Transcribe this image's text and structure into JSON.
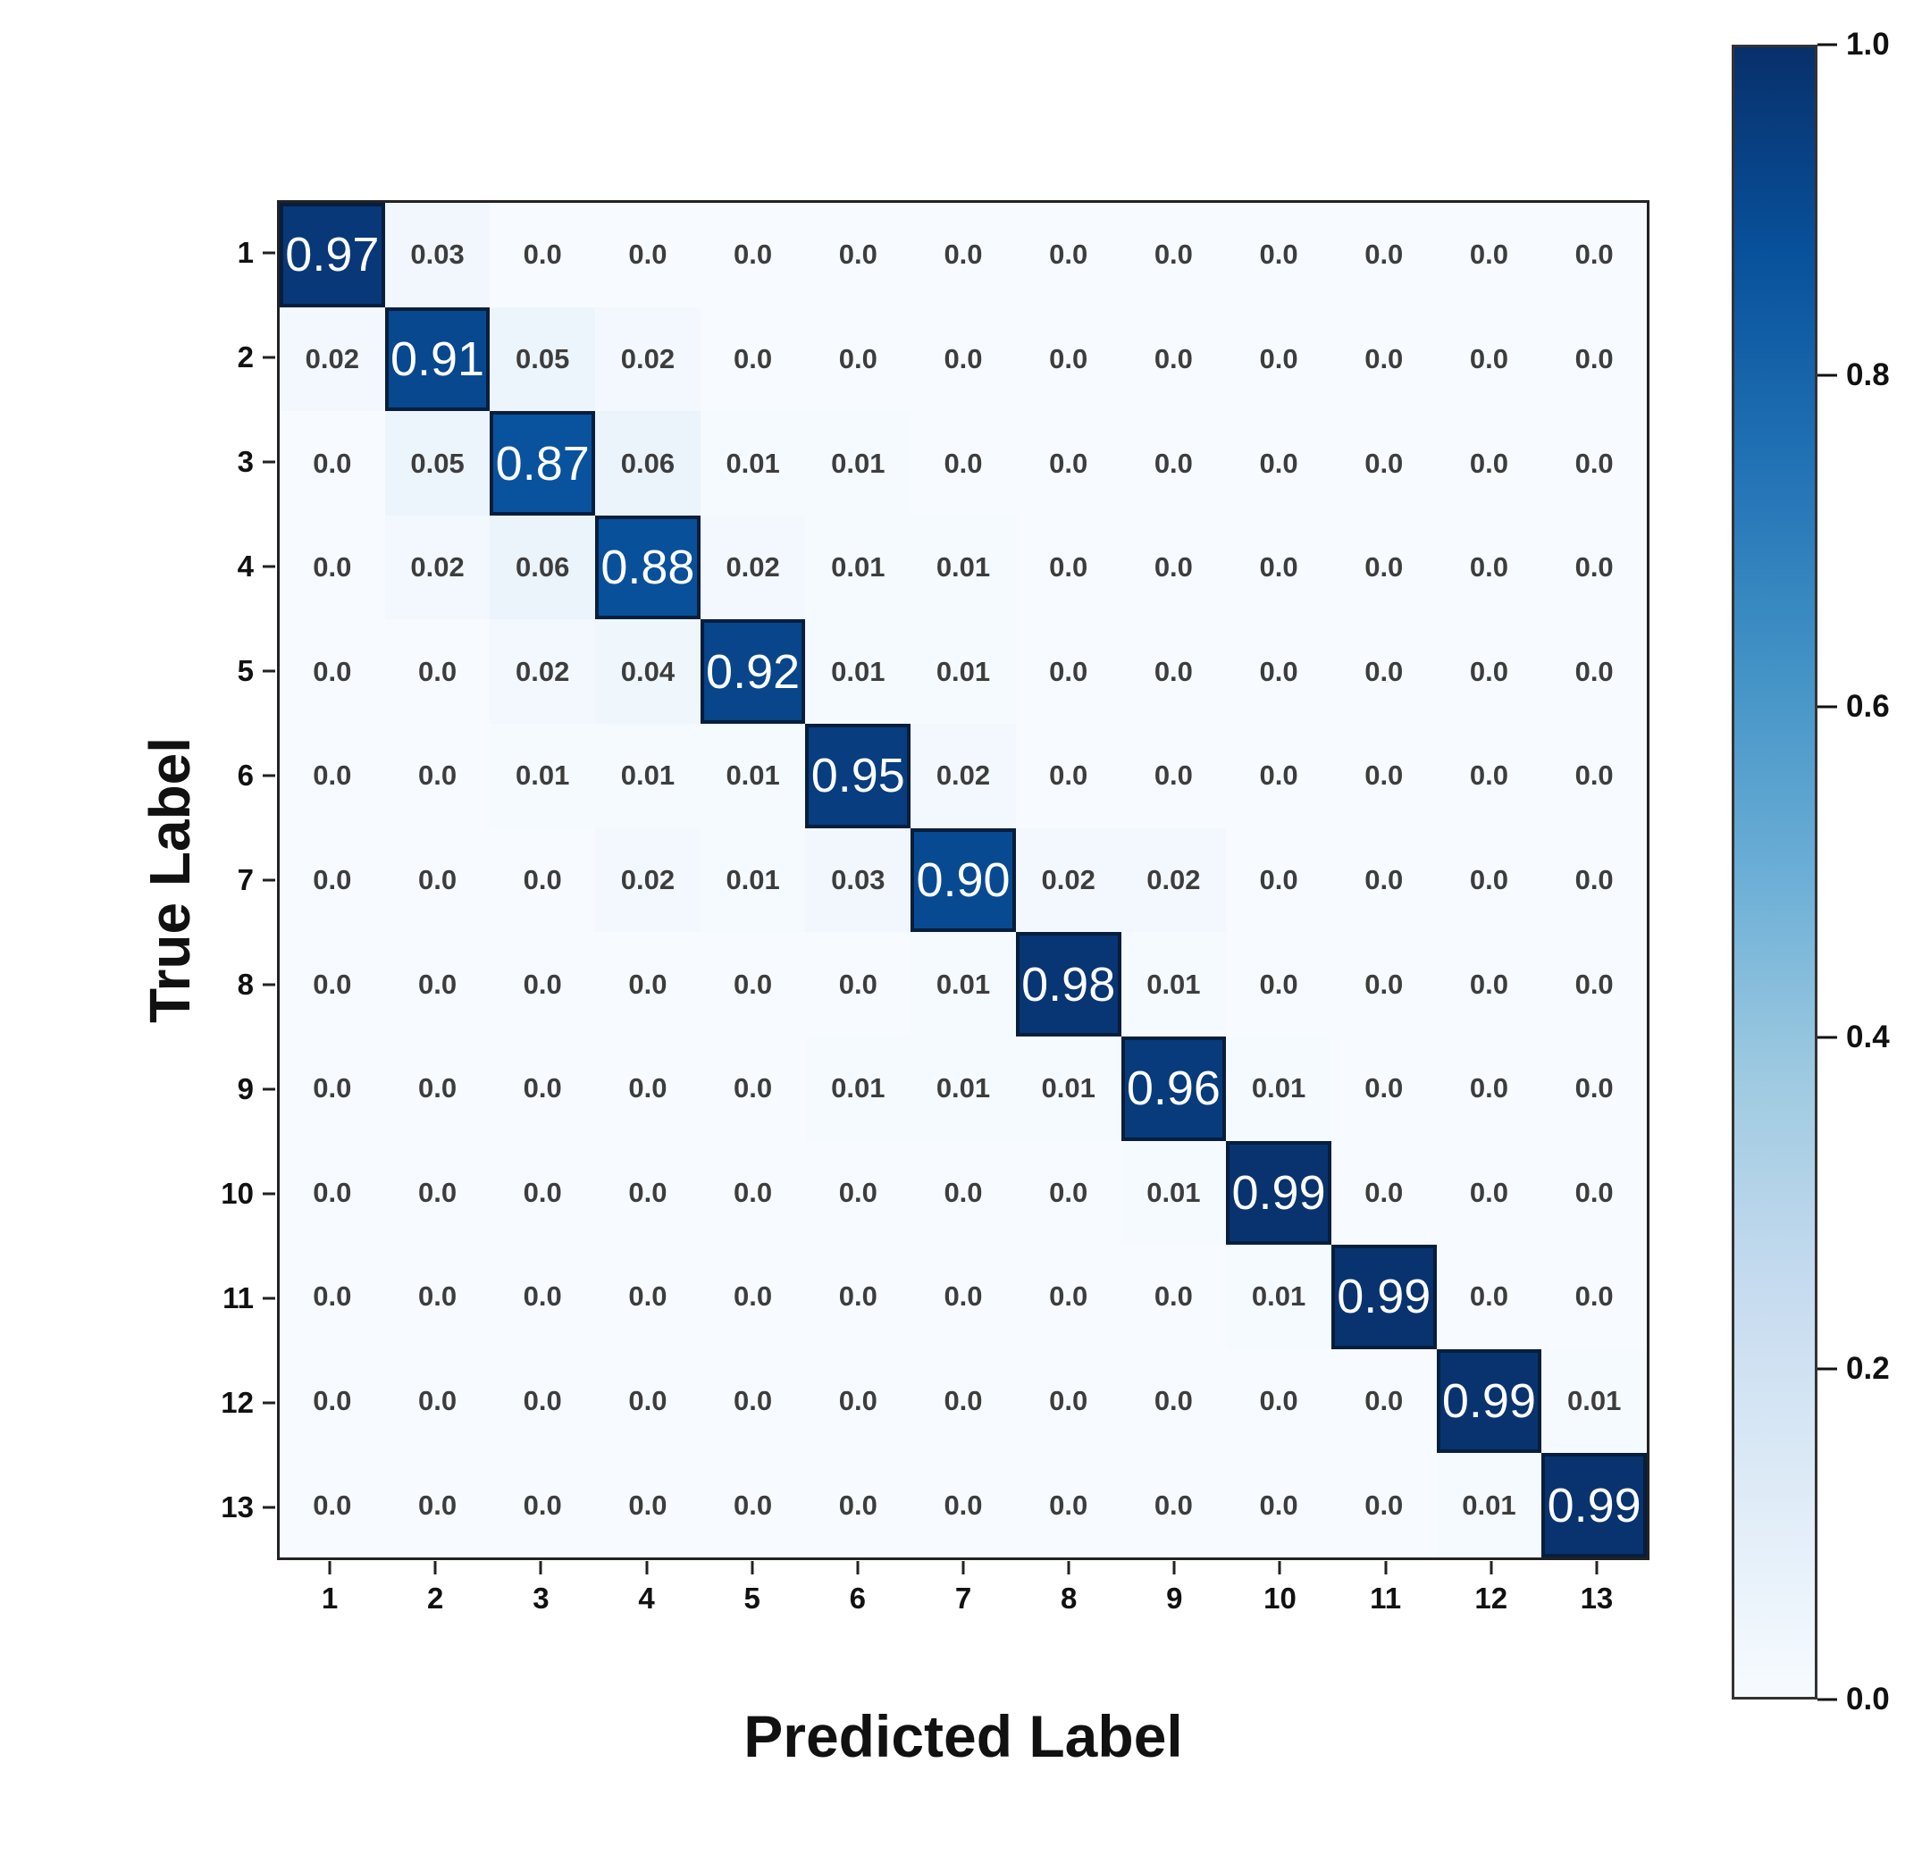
{
  "chart_data": {
    "type": "heatmap",
    "title": "",
    "xlabel": "Predicted Label",
    "ylabel": "True Label",
    "x_tick_labels": [
      "1",
      "2",
      "3",
      "4",
      "5",
      "6",
      "7",
      "8",
      "9",
      "10",
      "11",
      "12",
      "13"
    ],
    "y_tick_labels": [
      "1",
      "2",
      "3",
      "4",
      "5",
      "6",
      "7",
      "8",
      "9",
      "10",
      "11",
      "12",
      "13"
    ],
    "value_range": [
      0.0,
      1.0
    ],
    "colormap": "Blues",
    "grid": "off",
    "legend_position": "none",
    "matrix": [
      [
        0.97,
        0.03,
        0.0,
        0.0,
        0.0,
        0.0,
        0.0,
        0.0,
        0.0,
        0.0,
        0.0,
        0.0,
        0.0
      ],
      [
        0.02,
        0.91,
        0.05,
        0.02,
        0.0,
        0.0,
        0.0,
        0.0,
        0.0,
        0.0,
        0.0,
        0.0,
        0.0
      ],
      [
        0.0,
        0.05,
        0.87,
        0.06,
        0.01,
        0.01,
        0.0,
        0.0,
        0.0,
        0.0,
        0.0,
        0.0,
        0.0
      ],
      [
        0.0,
        0.02,
        0.06,
        0.88,
        0.02,
        0.01,
        0.01,
        0.0,
        0.0,
        0.0,
        0.0,
        0.0,
        0.0
      ],
      [
        0.0,
        0.0,
        0.02,
        0.04,
        0.92,
        0.01,
        0.01,
        0.0,
        0.0,
        0.0,
        0.0,
        0.0,
        0.0
      ],
      [
        0.0,
        0.0,
        0.01,
        0.01,
        0.01,
        0.95,
        0.02,
        0.0,
        0.0,
        0.0,
        0.0,
        0.0,
        0.0
      ],
      [
        0.0,
        0.0,
        0.0,
        0.02,
        0.01,
        0.03,
        0.9,
        0.02,
        0.02,
        0.0,
        0.0,
        0.0,
        0.0
      ],
      [
        0.0,
        0.0,
        0.0,
        0.0,
        0.0,
        0.0,
        0.01,
        0.98,
        0.01,
        0.0,
        0.0,
        0.0,
        0.0
      ],
      [
        0.0,
        0.0,
        0.0,
        0.0,
        0.0,
        0.01,
        0.01,
        0.01,
        0.96,
        0.01,
        0.0,
        0.0,
        0.0
      ],
      [
        0.0,
        0.0,
        0.0,
        0.0,
        0.0,
        0.0,
        0.0,
        0.0,
        0.01,
        0.99,
        0.0,
        0.0,
        0.0
      ],
      [
        0.0,
        0.0,
        0.0,
        0.0,
        0.0,
        0.0,
        0.0,
        0.0,
        0.0,
        0.01,
        0.99,
        0.0,
        0.0
      ],
      [
        0.0,
        0.0,
        0.0,
        0.0,
        0.0,
        0.0,
        0.0,
        0.0,
        0.0,
        0.0,
        0.0,
        0.99,
        0.01
      ],
      [
        0.0,
        0.0,
        0.0,
        0.0,
        0.0,
        0.0,
        0.0,
        0.0,
        0.0,
        0.0,
        0.0,
        0.01,
        0.99
      ]
    ],
    "colorbar": {
      "tick_labels": [
        "1.0",
        "0.8",
        "0.6",
        "0.4",
        "0.2",
        "0.0"
      ],
      "min": 0.0,
      "max": 1.0
    },
    "colors": {
      "low_cell": "#f7fbff",
      "high_cell": "#08306b",
      "diag_border": "#071e3d",
      "cell_text": "#3d3d3d",
      "diag_text": "#ffffff",
      "spine": "#222222"
    }
  }
}
